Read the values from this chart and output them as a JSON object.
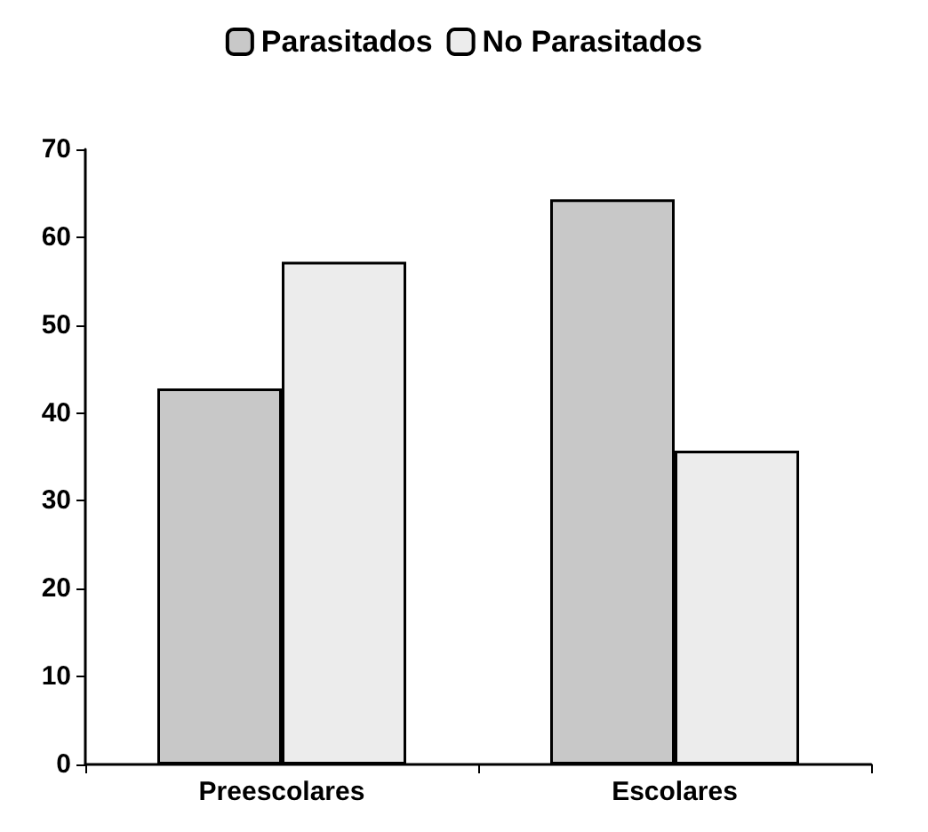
{
  "chart_data": {
    "type": "bar",
    "categories": [
      "Preescolares",
      "Escolares"
    ],
    "series": [
      {
        "name": "Parasitados",
        "color": "#c8c8c8",
        "values": [
          42.8,
          64.3
        ]
      },
      {
        "name": "No Parasitados",
        "color": "#ececec",
        "values": [
          57.2,
          35.7
        ]
      }
    ],
    "ylim": [
      0,
      70
    ],
    "yticks": [
      0,
      10,
      20,
      30,
      40,
      50,
      60,
      70
    ],
    "grid": false,
    "legend": "top"
  }
}
